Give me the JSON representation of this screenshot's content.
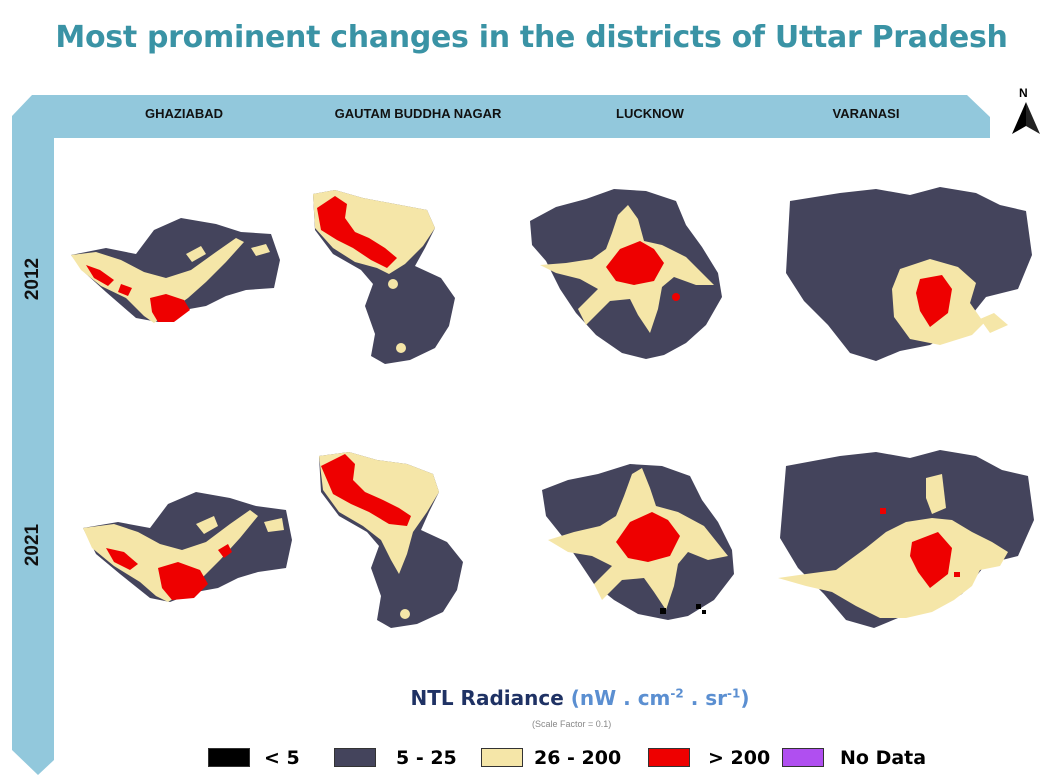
{
  "title": "Most prominent changes in the districts of Uttar Pradesh",
  "columns": [
    "GHAZIABAD",
    "GAUTAM BUDDHA NAGAR",
    "LUCKNOW",
    "VARANASI"
  ],
  "rows": [
    "2012",
    "2021"
  ],
  "north_label": "N",
  "legend": {
    "title": "NTL Radiance",
    "unit_prefix": "(nW . cm",
    "unit_exp1": "-2",
    "unit_mid": " . sr",
    "unit_exp2": "-1",
    "unit_suffix": ")",
    "scale_note": "(Scale Factor = 0.1)",
    "classes": [
      {
        "label": "< 5",
        "color": "#000000"
      },
      {
        "label": "5 - 25",
        "color": "#44445c"
      },
      {
        "label": "26 - 200",
        "color": "#f5e6a8"
      },
      {
        "label": "> 200",
        "color": "#ee0000"
      },
      {
        "label": "No Data",
        "color": "#b04ff0"
      }
    ]
  }
}
